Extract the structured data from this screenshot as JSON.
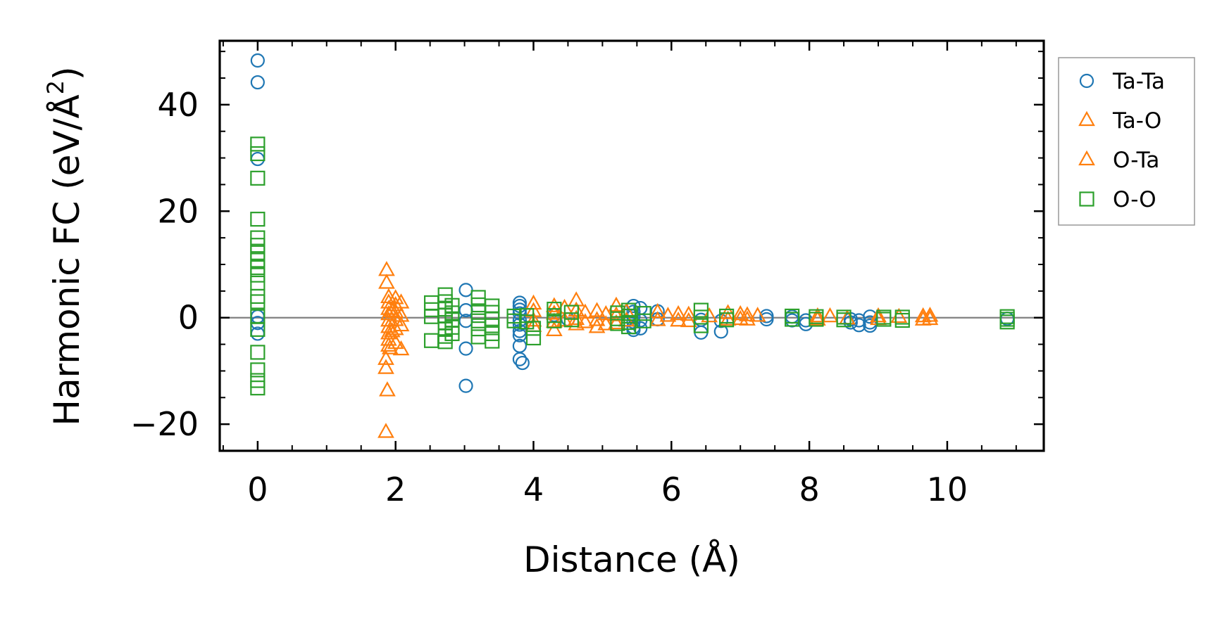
{
  "chart_data": {
    "type": "scatter",
    "xlabel": "Distance (Å)",
    "ylabel_main": "Harmonic FC (eV/Å",
    "ylabel_sup": "2",
    "ylabel_close": ")",
    "xlim": [
      -0.55,
      11.4
    ],
    "ylim": [
      -25,
      52
    ],
    "xticks": [
      0,
      2,
      4,
      6,
      8,
      10
    ],
    "xtick_labels": [
      "0",
      "2",
      "4",
      "6",
      "8",
      "10"
    ],
    "yticks": [
      -20,
      0,
      20,
      40
    ],
    "ytick_labels": [
      "−20",
      "0",
      "20",
      "40"
    ],
    "grid": false,
    "zero_line": true,
    "legend_position": "outside-right-top",
    "series": [
      {
        "name": "Ta-Ta",
        "marker": "circle",
        "color": "#1f77b4",
        "points": [
          [
            0,
            48.3
          ],
          [
            0,
            44.2
          ],
          [
            0,
            29.8
          ],
          [
            0,
            0.2
          ],
          [
            0,
            -1.0
          ],
          [
            0,
            -3.0
          ],
          [
            3.02,
            5.2
          ],
          [
            3.02,
            1.4
          ],
          [
            3.02,
            -0.6
          ],
          [
            3.02,
            -5.8
          ],
          [
            3.02,
            -12.8
          ],
          [
            3.8,
            2.8
          ],
          [
            3.8,
            2.2
          ],
          [
            3.8,
            1.5
          ],
          [
            3.8,
            0.8
          ],
          [
            3.8,
            -0.5
          ],
          [
            3.8,
            -1.3
          ],
          [
            3.8,
            -2.5
          ],
          [
            3.8,
            -3.3
          ],
          [
            3.8,
            -5.3
          ],
          [
            3.8,
            -7.8
          ],
          [
            3.84,
            -8.5
          ],
          [
            4.3,
            0.5
          ],
          [
            4.5,
            -0.3
          ],
          [
            5.45,
            2.2
          ],
          [
            5.45,
            1.1
          ],
          [
            5.45,
            0.3
          ],
          [
            5.45,
            -0.8
          ],
          [
            5.45,
            -1.8
          ],
          [
            5.45,
            -2.3
          ],
          [
            5.55,
            1.8
          ],
          [
            5.55,
            -0.5
          ],
          [
            5.55,
            -2.0
          ],
          [
            5.8,
            1.2
          ],
          [
            5.8,
            -0.3
          ],
          [
            6.43,
            -0.4
          ],
          [
            6.43,
            -2.8
          ],
          [
            6.72,
            -0.6
          ],
          [
            6.72,
            -2.6
          ],
          [
            7.38,
            0.3
          ],
          [
            7.38,
            -0.3
          ],
          [
            7.75,
            0.2
          ],
          [
            7.75,
            -0.5
          ],
          [
            7.95,
            -0.5
          ],
          [
            7.95,
            -1.2
          ],
          [
            8.6,
            -0.3
          ],
          [
            8.6,
            -0.9
          ],
          [
            8.72,
            -0.5
          ],
          [
            8.72,
            -1.4
          ],
          [
            8.88,
            0.2
          ],
          [
            8.88,
            -0.9
          ],
          [
            8.88,
            -1.5
          ],
          [
            10.87,
            -0.2
          ]
        ]
      },
      {
        "name": "Ta-O",
        "marker": "triangle",
        "color": "#ff7f0e",
        "points": [
          [
            1.87,
            8.9
          ],
          [
            1.87,
            6.5
          ],
          [
            1.9,
            3.8
          ],
          [
            1.9,
            2.8
          ],
          [
            1.9,
            1.6
          ],
          [
            1.9,
            0.6
          ],
          [
            1.9,
            -0.6
          ],
          [
            1.9,
            -1.8
          ],
          [
            1.9,
            -3.0
          ],
          [
            1.9,
            -4.2
          ],
          [
            1.9,
            -5.3
          ],
          [
            2.0,
            3.6
          ],
          [
            2.0,
            2.3
          ],
          [
            2.0,
            1.0
          ],
          [
            2.0,
            -0.5
          ],
          [
            2.0,
            -2.2
          ],
          [
            2.0,
            -4.8
          ],
          [
            2.08,
            2.8
          ],
          [
            2.08,
            0.3
          ],
          [
            2.08,
            -1.5
          ],
          [
            4.0,
            2.6
          ],
          [
            4.0,
            1.2
          ],
          [
            4.0,
            -0.6
          ],
          [
            4.0,
            -1.6
          ],
          [
            4.3,
            2.1
          ],
          [
            4.3,
            0.7
          ],
          [
            4.3,
            -0.8
          ],
          [
            4.3,
            -2.4
          ],
          [
            4.62,
            3.2
          ],
          [
            4.62,
            1.3
          ],
          [
            4.62,
            -0.3
          ],
          [
            4.62,
            -1.3
          ],
          [
            4.92,
            1.2
          ],
          [
            4.92,
            -0.5
          ],
          [
            4.92,
            -1.8
          ],
          [
            5.2,
            2.2
          ],
          [
            5.2,
            0.4
          ],
          [
            5.2,
            -1.1
          ],
          [
            5.8,
            1.0
          ],
          [
            5.8,
            -0.5
          ],
          [
            6.1,
            0.6
          ],
          [
            6.1,
            -0.6
          ],
          [
            6.82,
            0.8
          ],
          [
            6.82,
            -0.4
          ],
          [
            7.1,
            0.4
          ],
          [
            7.1,
            -0.4
          ],
          [
            8.12,
            0.2
          ],
          [
            8.12,
            -0.4
          ],
          [
            9.0,
            0.2
          ],
          [
            9.0,
            -0.3
          ],
          [
            9.65,
            0.2
          ],
          [
            9.65,
            -0.4
          ],
          [
            9.75,
            0.3
          ],
          [
            9.75,
            -0.3
          ]
        ]
      },
      {
        "name": "O-Ta",
        "marker": "triangle",
        "color": "#ff7f0e",
        "points": [
          [
            1.86,
            -21.5
          ],
          [
            1.88,
            -13.7
          ],
          [
            1.86,
            -9.5
          ],
          [
            1.86,
            -7.8
          ],
          [
            1.92,
            -5.8
          ],
          [
            2.08,
            -6.0
          ],
          [
            1.95,
            -2.6
          ],
          [
            1.95,
            1.2
          ],
          [
            4.45,
            1.8
          ],
          [
            4.45,
            -0.6
          ],
          [
            4.75,
            0.9
          ],
          [
            4.75,
            -0.9
          ],
          [
            5.05,
            0.6
          ],
          [
            5.05,
            -1.3
          ],
          [
            5.35,
            1.1
          ],
          [
            5.35,
            -0.6
          ],
          [
            5.95,
            0.3
          ],
          [
            6.25,
            0.5
          ],
          [
            6.25,
            -0.7
          ],
          [
            6.55,
            0.2
          ],
          [
            7.0,
            0.6
          ],
          [
            7.0,
            -0.3
          ],
          [
            7.25,
            0.3
          ],
          [
            8.3,
            0.2
          ],
          [
            8.55,
            -0.2
          ],
          [
            9.3,
            0.1
          ]
        ]
      },
      {
        "name": "O-O",
        "marker": "square",
        "color": "#2ca02c",
        "points": [
          [
            0,
            32.6
          ],
          [
            0,
            30.8
          ],
          [
            0,
            26.2
          ],
          [
            0,
            18.5
          ],
          [
            0,
            15.0
          ],
          [
            0,
            13.6
          ],
          [
            0,
            12.2
          ],
          [
            0,
            10.8
          ],
          [
            0,
            9.4
          ],
          [
            0,
            8.0
          ],
          [
            0,
            6.5
          ],
          [
            0,
            4.0
          ],
          [
            0,
            3.0
          ],
          [
            0,
            0.2
          ],
          [
            0,
            -2.2
          ],
          [
            0,
            -6.5
          ],
          [
            0,
            -9.8
          ],
          [
            0,
            -11.8
          ],
          [
            0,
            -13.2
          ],
          [
            2.52,
            2.8
          ],
          [
            2.52,
            1.5
          ],
          [
            2.52,
            0.2
          ],
          [
            2.52,
            -4.3
          ],
          [
            2.72,
            4.3
          ],
          [
            2.72,
            3.0
          ],
          [
            2.72,
            1.6
          ],
          [
            2.72,
            0.4
          ],
          [
            2.72,
            -0.9
          ],
          [
            2.72,
            -2.2
          ],
          [
            2.72,
            -3.5
          ],
          [
            2.72,
            -4.5
          ],
          [
            2.82,
            2.3
          ],
          [
            2.82,
            0.9
          ],
          [
            2.82,
            -0.4
          ],
          [
            2.82,
            -1.8
          ],
          [
            2.82,
            -3.0
          ],
          [
            3.2,
            3.8
          ],
          [
            3.2,
            2.4
          ],
          [
            3.2,
            1.0
          ],
          [
            3.2,
            -0.6
          ],
          [
            3.2,
            -2.1
          ],
          [
            3.2,
            -3.6
          ],
          [
            3.4,
            2.2
          ],
          [
            3.4,
            1.0
          ],
          [
            3.4,
            -0.2
          ],
          [
            3.4,
            -1.5
          ],
          [
            3.4,
            -3.0
          ],
          [
            3.4,
            -4.4
          ],
          [
            3.72,
            0.3
          ],
          [
            3.72,
            -0.6
          ],
          [
            3.9,
            0.4
          ],
          [
            3.9,
            -0.8
          ],
          [
            4.0,
            -2.0
          ],
          [
            4.0,
            -3.8
          ],
          [
            4.3,
            1.6
          ],
          [
            4.3,
            0.4
          ],
          [
            4.3,
            -0.6
          ],
          [
            4.55,
            1.0
          ],
          [
            4.55,
            -0.4
          ],
          [
            5.22,
            0.9
          ],
          [
            5.22,
            -0.2
          ],
          [
            5.22,
            -1.1
          ],
          [
            5.38,
            1.4
          ],
          [
            5.38,
            0.3
          ],
          [
            5.38,
            -0.9
          ],
          [
            5.38,
            -1.7
          ],
          [
            5.6,
            0.8
          ],
          [
            5.6,
            -0.6
          ],
          [
            6.43,
            1.4
          ],
          [
            6.43,
            0.1
          ],
          [
            6.43,
            -1.5
          ],
          [
            6.8,
            0.3
          ],
          [
            6.8,
            -0.4
          ],
          [
            7.75,
            0.3
          ],
          [
            7.75,
            -0.3
          ],
          [
            8.1,
            0.2
          ],
          [
            8.1,
            -0.3
          ],
          [
            8.5,
            0.1
          ],
          [
            8.5,
            -0.4
          ],
          [
            9.08,
            0.1
          ],
          [
            9.08,
            -0.3
          ],
          [
            9.35,
            0.1
          ],
          [
            9.35,
            -0.5
          ],
          [
            10.87,
            0.2
          ],
          [
            10.87,
            -0.3
          ],
          [
            10.87,
            -0.8
          ]
        ]
      }
    ]
  }
}
